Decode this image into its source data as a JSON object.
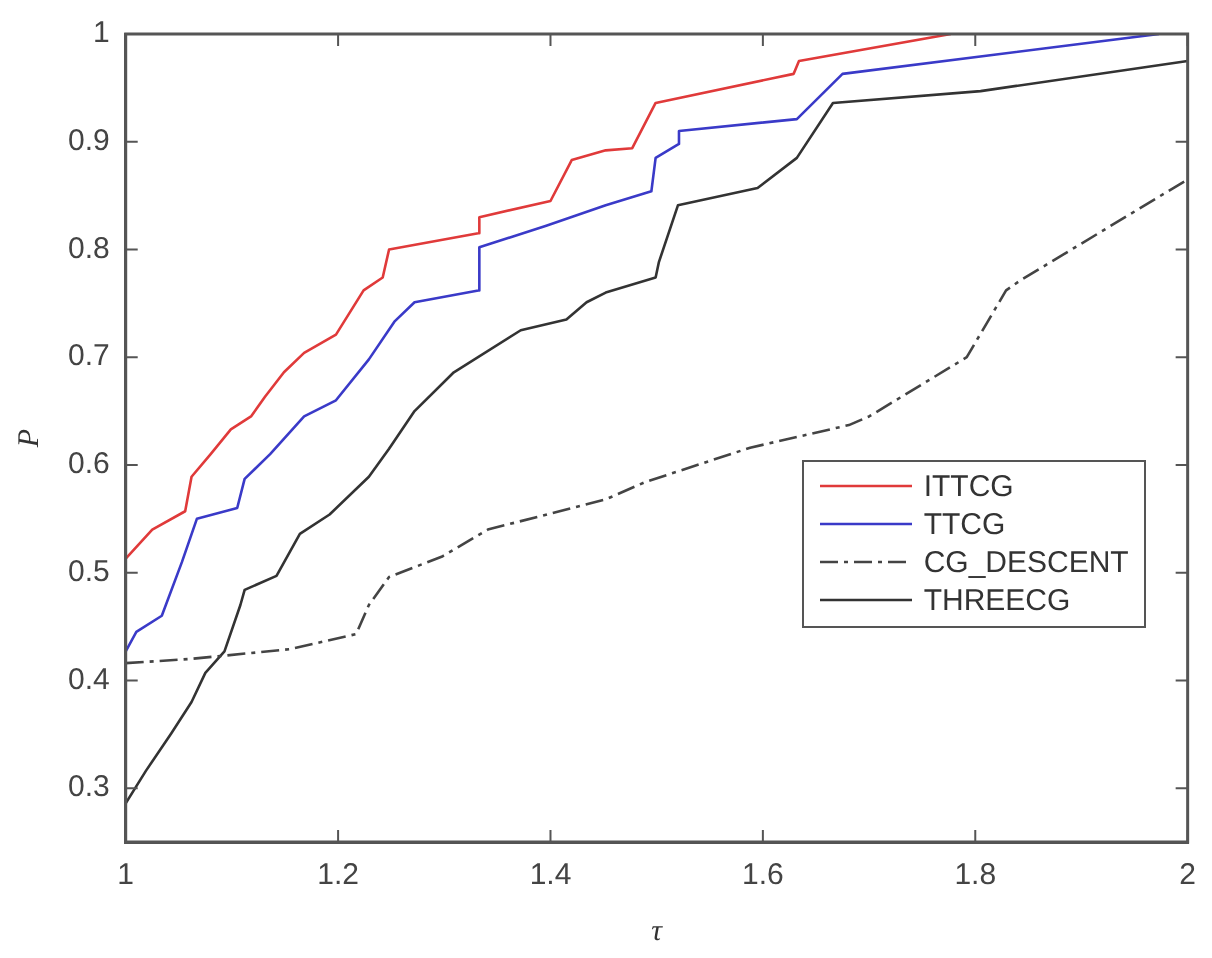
{
  "chart_data": {
    "type": "line",
    "xlabel": "τ",
    "ylabel": "P",
    "xlim": [
      1,
      2
    ],
    "xticks": [
      1,
      1.2,
      1.4,
      1.6,
      1.8,
      2
    ],
    "ylim": [
      0.25,
      1
    ],
    "yticks": [
      0.3,
      0.4,
      0.5,
      0.6,
      0.7,
      0.8,
      0.9,
      1
    ],
    "grid": false,
    "legend": "right",
    "marker": "none",
    "series": [
      {
        "name": "ITTCG",
        "color": "#e03a3a",
        "line_style": "solid",
        "x": [
          1.0,
          1.025,
          1.056,
          1.062,
          1.08,
          1.099,
          1.118,
          1.131,
          1.149,
          1.168,
          1.198,
          1.224,
          1.242,
          1.248,
          1.332,
          1.333,
          1.4,
          1.42,
          1.452,
          1.477,
          1.499,
          1.629,
          1.634,
          1.777
        ],
        "values": [
          0.513,
          0.54,
          0.557,
          0.589,
          0.61,
          0.633,
          0.645,
          0.663,
          0.686,
          0.704,
          0.721,
          0.762,
          0.774,
          0.8,
          0.815,
          0.83,
          0.845,
          0.883,
          0.892,
          0.894,
          0.936,
          0.963,
          0.975,
          1.0
        ]
      },
      {
        "name": "TTCG",
        "color": "#3a3ac8",
        "line_style": "solid",
        "x": [
          1.0,
          1.01,
          1.034,
          1.053,
          1.067,
          1.105,
          1.112,
          1.136,
          1.168,
          1.198,
          1.229,
          1.253,
          1.272,
          1.332,
          1.333,
          1.396,
          1.452,
          1.495,
          1.499,
          1.521,
          1.521,
          1.632,
          1.675,
          1.973
        ],
        "values": [
          0.427,
          0.445,
          0.46,
          0.51,
          0.55,
          0.56,
          0.587,
          0.61,
          0.645,
          0.66,
          0.698,
          0.733,
          0.751,
          0.762,
          0.802,
          0.822,
          0.841,
          0.854,
          0.885,
          0.898,
          0.91,
          0.921,
          0.963,
          1.0
        ]
      },
      {
        "name": "CG_DESCENT",
        "color": "#444444",
        "line_style": "dashdot",
        "x": [
          1.0,
          1.062,
          1.155,
          1.217,
          1.229,
          1.248,
          1.298,
          1.341,
          1.452,
          1.489,
          1.588,
          1.681,
          1.7,
          1.792,
          1.829,
          1.842,
          2.0
        ],
        "values": [
          0.416,
          0.42,
          0.429,
          0.443,
          0.47,
          0.496,
          0.515,
          0.54,
          0.568,
          0.584,
          0.616,
          0.637,
          0.645,
          0.7,
          0.762,
          0.771,
          0.865
        ]
      },
      {
        "name": "THREECG",
        "color": "#333333",
        "line_style": "solid",
        "x": [
          1.0,
          1.019,
          1.043,
          1.062,
          1.075,
          1.093,
          1.108,
          1.112,
          1.142,
          1.164,
          1.192,
          1.229,
          1.248,
          1.272,
          1.309,
          1.372,
          1.415,
          1.434,
          1.452,
          1.499,
          1.502,
          1.52,
          1.595,
          1.632,
          1.666,
          1.805,
          2.0
        ],
        "values": [
          0.286,
          0.316,
          0.351,
          0.38,
          0.407,
          0.427,
          0.47,
          0.484,
          0.497,
          0.536,
          0.554,
          0.589,
          0.615,
          0.65,
          0.686,
          0.725,
          0.735,
          0.751,
          0.76,
          0.774,
          0.788,
          0.841,
          0.857,
          0.885,
          0.936,
          0.947,
          0.975
        ]
      }
    ]
  }
}
